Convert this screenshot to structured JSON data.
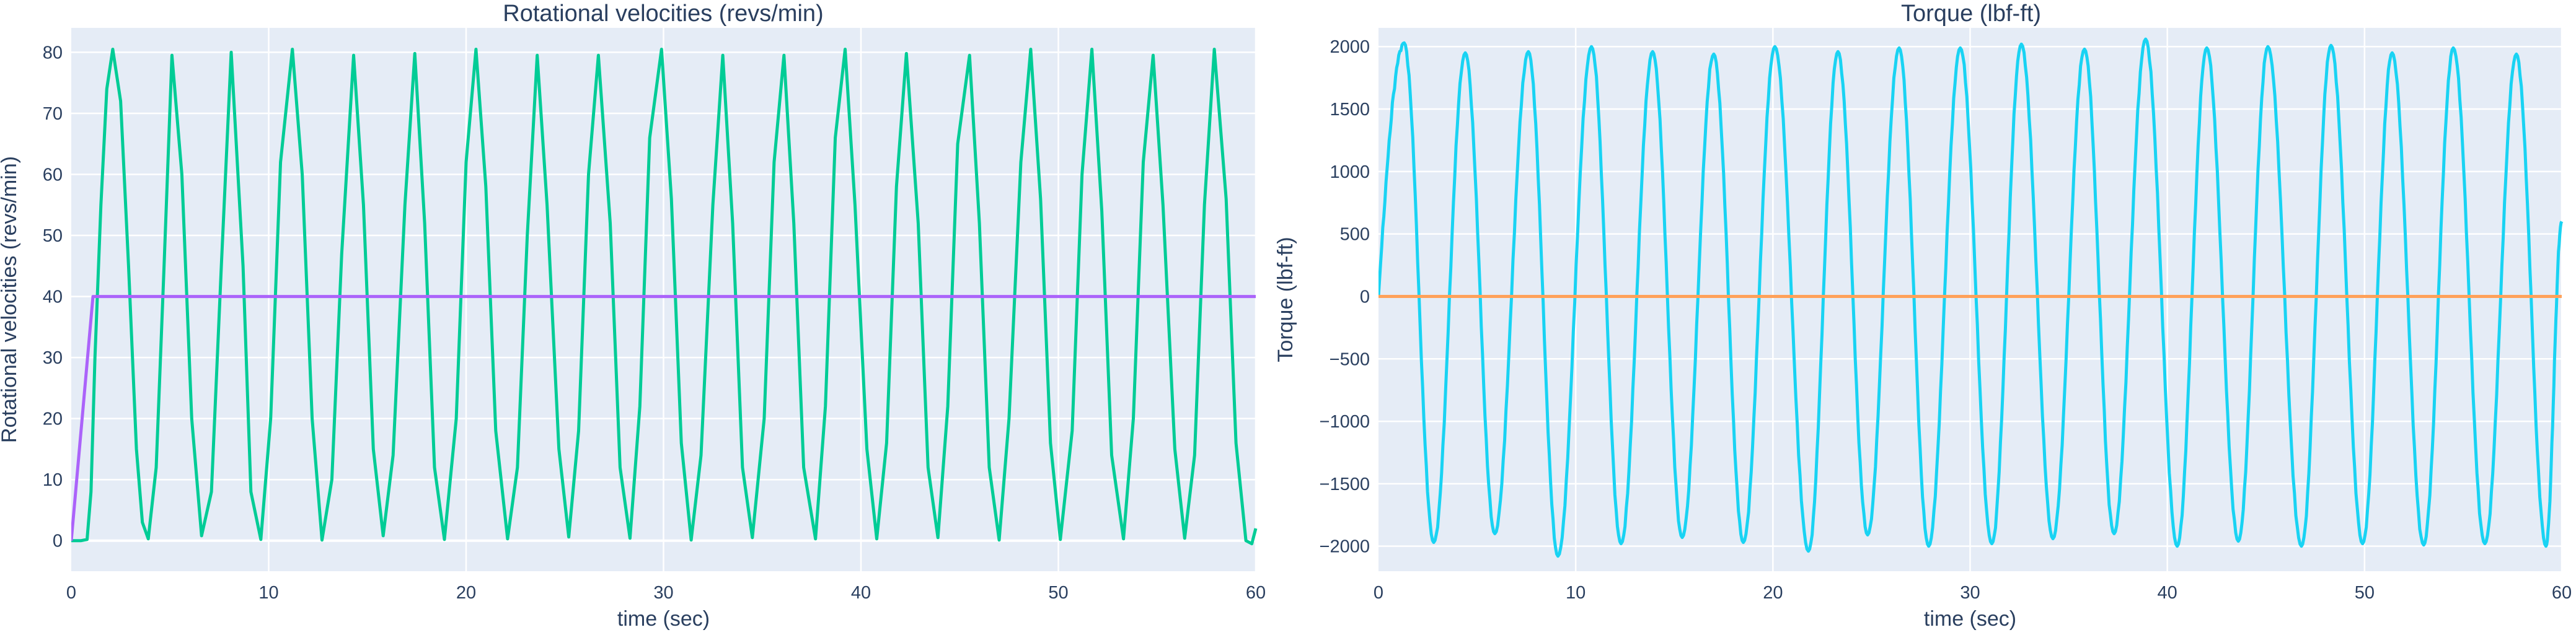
{
  "chart_data": [
    {
      "type": "line",
      "title": "Rotational velocities (revs/min)",
      "xlabel": "time (sec)",
      "ylabel": "Rotational velocities (revs/min)",
      "xlim": [
        0,
        60
      ],
      "ylim": [
        -5,
        84
      ],
      "xticks": [
        0,
        10,
        20,
        30,
        40,
        50,
        60
      ],
      "yticks": [
        0,
        10,
        20,
        30,
        40,
        50,
        60,
        70,
        80
      ],
      "grid": true,
      "legend": "none",
      "series": [
        {
          "color": "#00cc96",
          "x": [
            0,
            0.5,
            0.8,
            1.0,
            1.2,
            1.5,
            1.8,
            2.1,
            2.5,
            2.9,
            3.3,
            3.6,
            3.9,
            4.3,
            4.7,
            5.1,
            5.6,
            6.1,
            6.6,
            7.1,
            7.6,
            8.1,
            8.7,
            9.1,
            9.6,
            10.1,
            10.6,
            11.2,
            11.7,
            12.2,
            12.7,
            13.2,
            13.7,
            14.3,
            14.8,
            15.3,
            15.8,
            16.3,
            16.9,
            17.4,
            17.9,
            18.4,
            18.9,
            19.5,
            20.0,
            20.5,
            21.0,
            21.5,
            22.1,
            22.6,
            23.1,
            23.6,
            24.1,
            24.7,
            25.2,
            25.7,
            26.2,
            26.7,
            27.3,
            27.8,
            28.3,
            28.8,
            29.3,
            29.9,
            30.4,
            30.9,
            31.4,
            31.9,
            32.5,
            33.0,
            33.5,
            34.0,
            34.5,
            35.1,
            35.6,
            36.1,
            36.6,
            37.1,
            37.7,
            38.2,
            38.7,
            39.2,
            39.7,
            40.3,
            40.8,
            41.3,
            41.8,
            42.3,
            42.9,
            43.4,
            43.9,
            44.4,
            44.9,
            45.5,
            46.0,
            46.5,
            47.0,
            47.5,
            48.1,
            48.6,
            49.1,
            49.6,
            50.1,
            50.7,
            51.2,
            51.7,
            52.2,
            52.7,
            53.3,
            53.8,
            54.3,
            54.8,
            55.3,
            55.9,
            56.4,
            56.9,
            57.4,
            57.9,
            58.5,
            59.0,
            59.5,
            59.8,
            60.0
          ],
          "y": [
            0,
            0,
            0.2,
            8,
            30,
            55,
            74,
            80.5,
            72,
            45,
            15,
            3,
            0.3,
            12,
            45,
            79.5,
            60,
            20,
            0.8,
            8,
            45,
            80,
            45,
            8,
            0.2,
            20,
            62,
            80.5,
            60,
            20,
            0.1,
            10,
            47,
            79.5,
            55,
            15,
            0.8,
            14,
            55,
            79.8,
            52,
            12,
            0.2,
            20,
            62,
            80.5,
            58,
            18,
            0.3,
            12,
            50,
            79.5,
            55,
            15,
            0.6,
            18,
            60,
            79.5,
            52,
            12,
            0.4,
            22,
            66,
            80.5,
            56,
            16,
            0.1,
            14,
            55,
            79.5,
            52,
            12,
            0.5,
            20,
            62,
            79.5,
            52,
            12,
            0.3,
            22,
            66,
            80.5,
            55,
            15,
            0.3,
            16,
            58,
            79.8,
            52,
            12,
            0.5,
            22,
            65,
            79.5,
            52,
            12,
            0.1,
            20,
            62,
            80.5,
            56,
            16,
            0.2,
            18,
            60,
            80.5,
            54,
            14,
            0.3,
            20,
            62,
            79.5,
            55,
            15,
            0.4,
            14,
            55,
            80.5,
            56,
            16,
            0,
            -0.5,
            2
          ]
        },
        {
          "color": "#ab63fa",
          "x": [
            0,
            1.1,
            60
          ],
          "y": [
            0,
            40,
            40
          ]
        }
      ]
    },
    {
      "type": "line",
      "title": "Torque (lbf-ft)",
      "xlabel": "time (sec)",
      "ylabel": "Torque (lbf-ft)",
      "xlim": [
        0,
        60
      ],
      "ylim": [
        -2200,
        2150
      ],
      "xticks": [
        0,
        10,
        20,
        30,
        40,
        50,
        60
      ],
      "yticks": [
        -2000,
        -1500,
        -1000,
        -500,
        0,
        500,
        1000,
        1500,
        2000
      ],
      "grid": true,
      "legend": "none",
      "series": [
        {
          "color": "#19d3f3",
          "peaks": [
            [
              1.3,
              2030
            ],
            [
              4.4,
              1950
            ],
            [
              7.6,
              1960
            ],
            [
              10.8,
              2000
            ],
            [
              13.9,
              1960
            ],
            [
              17.0,
              1940
            ],
            [
              20.1,
              2000
            ],
            [
              23.3,
              1960
            ],
            [
              26.4,
              1990
            ],
            [
              29.5,
              1990
            ],
            [
              32.6,
              2020
            ],
            [
              35.8,
              1980
            ],
            [
              38.9,
              2060
            ],
            [
              42.0,
              1990
            ],
            [
              45.1,
              2000
            ],
            [
              48.3,
              2010
            ],
            [
              51.4,
              1950
            ],
            [
              54.5,
              1990
            ],
            [
              57.7,
              1940
            ]
          ],
          "troughs": [
            [
              2.8,
              -1970
            ],
            [
              5.9,
              -1900
            ],
            [
              9.1,
              -2080
            ],
            [
              12.3,
              -1980
            ],
            [
              15.4,
              -1930
            ],
            [
              18.5,
              -1970
            ],
            [
              21.8,
              -2040
            ],
            [
              24.8,
              -1910
            ],
            [
              27.9,
              -2000
            ],
            [
              31.1,
              -1980
            ],
            [
              34.2,
              -1940
            ],
            [
              37.3,
              -1900
            ],
            [
              40.5,
              -2000
            ],
            [
              43.6,
              -1960
            ],
            [
              46.8,
              -2000
            ],
            [
              49.9,
              -1980
            ],
            [
              53.0,
              -1990
            ],
            [
              56.1,
              -1980
            ],
            [
              59.2,
              -2000
            ]
          ],
          "end": [
            60,
            600
          ]
        },
        {
          "color": "#ffa15a",
          "x": [
            0,
            60
          ],
          "y": [
            0,
            0
          ]
        }
      ]
    }
  ]
}
